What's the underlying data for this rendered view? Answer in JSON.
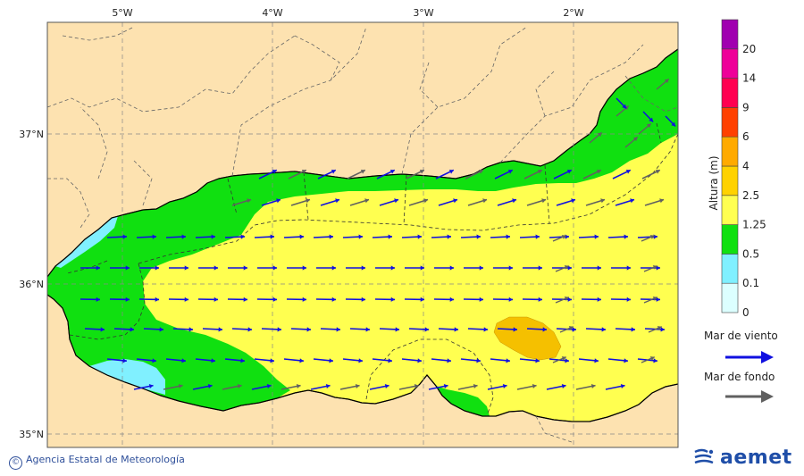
{
  "map": {
    "lon_ticks": [
      "5°W",
      "4°W",
      "3°W",
      "2°W"
    ],
    "lat_ticks": [
      "37°N",
      "36°N",
      "35°N"
    ]
  },
  "legend": {
    "title": "Altura (m)",
    "levels": [
      "0",
      "0.1",
      "0.5",
      "1.25",
      "2.5",
      "4",
      "6",
      "9",
      "14",
      "20"
    ],
    "colors": [
      "#dcffff",
      "#80f0ff",
      "#10e010",
      "#ffff50",
      "#ffd200",
      "#ffaa00",
      "#ff4000",
      "#ff0050",
      "#ee0099",
      "#a000b0"
    ],
    "wind_label": "Mar de viento",
    "swell_label": "Mar de fondo",
    "wind_color": "#1010e0",
    "swell_color": "#606060"
  },
  "footer": {
    "credit": "Agencia Estatal de Meteorología",
    "logo_text": "aemet"
  },
  "colors": {
    "land": "#fde2b0",
    "sea_yellow": "#ffff50",
    "sea_green": "#10e010",
    "sea_cyan": "#80f0ff",
    "patch_orange": "#f5c000"
  }
}
